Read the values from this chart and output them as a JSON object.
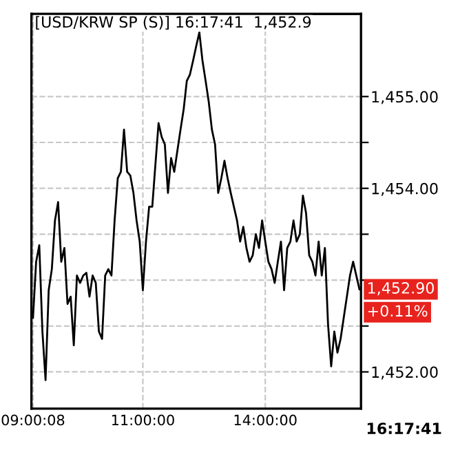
{
  "chart_data": {
    "type": "line",
    "title": "[USD/KRW SP (S)] 16:17:41  1,452.9",
    "ylim": [
      1451.6,
      1455.9
    ],
    "categories": [
      "09:00:08",
      null,
      null,
      null,
      null,
      null,
      null,
      null,
      null,
      null,
      null,
      null,
      null,
      null,
      null,
      null,
      null,
      null,
      null,
      null,
      null,
      null,
      null,
      null,
      null,
      null,
      null,
      null,
      null,
      null,
      null,
      null,
      null,
      null,
      null,
      "11:00:00",
      null,
      null,
      null,
      null,
      null,
      null,
      null,
      null,
      null,
      null,
      null,
      null,
      null,
      null,
      null,
      null,
      null,
      null,
      null,
      null,
      null,
      null,
      null,
      null,
      null,
      null,
      null,
      null,
      null,
      null,
      null,
      null,
      null,
      null,
      null,
      null,
      null,
      null,
      "14:00:00",
      null,
      null,
      null,
      null,
      null,
      null,
      null,
      null,
      null,
      null,
      null,
      null,
      null,
      null,
      null,
      null,
      null,
      null,
      null,
      null,
      null,
      null,
      null,
      null,
      null,
      null,
      null,
      null,
      null,
      null
    ],
    "yticks": [
      {
        "value": 1452,
        "label": "1,452.00"
      },
      {
        "value": 1452.5,
        "label": null
      },
      {
        "value": 1453,
        "label": null
      },
      {
        "value": 1453.5,
        "label": null
      },
      {
        "value": 1454,
        "label": "1,454.00"
      },
      {
        "value": 1454.5,
        "label": null
      },
      {
        "value": 1455,
        "label": "1,455.00"
      }
    ],
    "grid": true,
    "legend": false,
    "annotations": [
      "1,452.90",
      "+0.11%",
      "16:17:41"
    ],
    "series": [
      {
        "color": "#000000",
        "values": [
          1452.59,
          1453.2,
          1453.38,
          1452.44,
          1451.91,
          1452.89,
          1453.12,
          1453.65,
          1453.85,
          1453.2,
          1453.35,
          1452.74,
          1452.82,
          1452.29,
          1453.05,
          1452.97,
          1453.05,
          1453.08,
          1452.82,
          1453.05,
          1452.97,
          1452.44,
          1452.36,
          1453.05,
          1453.12,
          1453.05,
          1453.65,
          1454.11,
          1454.18,
          1454.64,
          1454.18,
          1454.14,
          1453.95,
          1453.65,
          1453.42,
          1452.89,
          1453.42,
          1453.8,
          1453.8,
          1454.26,
          1454.71,
          1454.56,
          1454.48,
          1453.95,
          1454.33,
          1454.18,
          1454.41,
          1454.64,
          1454.86,
          1455.17,
          1455.24,
          1455.39,
          1455.55,
          1455.7,
          1455.39,
          1455.17,
          1454.94,
          1454.64,
          1454.48,
          1453.95,
          1454.11,
          1454.3,
          1454.11,
          1453.95,
          1453.8,
          1453.65,
          1453.42,
          1453.58,
          1453.35,
          1453.2,
          1453.27,
          1453.5,
          1453.35,
          1453.65,
          1453.42,
          1453.2,
          1453.12,
          1452.97,
          1453.2,
          1453.42,
          1452.89,
          1453.35,
          1453.42,
          1453.65,
          1453.42,
          1453.5,
          1453.92,
          1453.73,
          1453.27,
          1453.2,
          1453.05,
          1453.42,
          1453.05,
          1453.35,
          1452.52,
          1452.06,
          1452.44,
          1452.21,
          1452.36,
          1452.59,
          1452.82,
          1453.05,
          1453.2,
          1453.05,
          1452.9
        ]
      }
    ]
  }
}
